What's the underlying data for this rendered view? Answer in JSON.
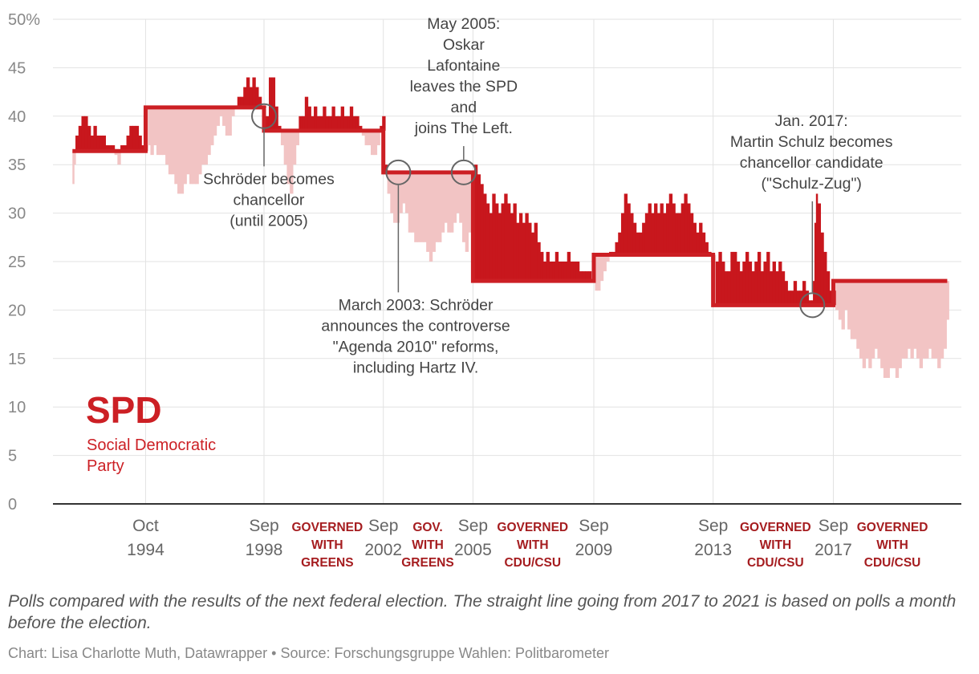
{
  "chart_data": {
    "type": "area",
    "title": "SPD",
    "subtitle": "Social Democratic Party",
    "party_name": "SPD",
    "party_subtitle_lines": [
      "Social Democratic",
      "Party"
    ],
    "ylabel": "",
    "ylim": [
      0,
      50
    ],
    "yticks": [
      {
        "value": 0,
        "label": "0"
      },
      {
        "value": 5,
        "label": "5"
      },
      {
        "value": 10,
        "label": "10"
      },
      {
        "value": 15,
        "label": "15"
      },
      {
        "value": 20,
        "label": "20"
      },
      {
        "value": 25,
        "label": "25"
      },
      {
        "value": 30,
        "label": "30"
      },
      {
        "value": 35,
        "label": "35"
      },
      {
        "value": 40,
        "label": "40"
      },
      {
        "value": 45,
        "label": "45"
      },
      {
        "value": 50,
        "label": "50%"
      }
    ],
    "xlim": [
      1991.7,
      2022.0
    ],
    "elections": [
      {
        "date": 1994.79,
        "label_lines": [
          "Oct",
          "1994"
        ]
      },
      {
        "date": 1998.74,
        "label_lines": [
          "Sep",
          "1998"
        ]
      },
      {
        "date": 2002.72,
        "label_lines": [
          "Sep",
          "2002"
        ]
      },
      {
        "date": 2005.71,
        "label_lines": [
          "Sep",
          "2005"
        ]
      },
      {
        "date": 2009.74,
        "label_lines": [
          "Sep",
          "2009"
        ]
      },
      {
        "date": 2013.72,
        "label_lines": [
          "Sep",
          "2013"
        ]
      },
      {
        "date": 2017.73,
        "label_lines": [
          "Sep",
          "2017"
        ]
      }
    ],
    "election_result_line": [
      {
        "from": 1992.35,
        "to": 1994.79,
        "value": 36.4
      },
      {
        "from": 1994.79,
        "to": 1998.74,
        "value": 40.9
      },
      {
        "from": 1998.74,
        "to": 2002.72,
        "value": 38.5
      },
      {
        "from": 2002.72,
        "to": 2005.71,
        "value": 34.2
      },
      {
        "from": 2005.71,
        "to": 2009.74,
        "value": 23.0
      },
      {
        "from": 2009.74,
        "to": 2013.72,
        "value": 25.7
      },
      {
        "from": 2013.72,
        "to": 2017.73,
        "value": 20.5
      },
      {
        "from": 2017.73,
        "to": 2021.53,
        "value": 23.0
      }
    ],
    "polls": [
      [
        1992.35,
        33
      ],
      [
        1992.4,
        35
      ],
      [
        1992.45,
        38
      ],
      [
        1992.55,
        39
      ],
      [
        1992.65,
        40
      ],
      [
        1992.75,
        40
      ],
      [
        1992.85,
        39
      ],
      [
        1992.95,
        38
      ],
      [
        1993.05,
        39
      ],
      [
        1993.15,
        38
      ],
      [
        1993.25,
        38
      ],
      [
        1993.35,
        38
      ],
      [
        1993.45,
        37
      ],
      [
        1993.55,
        37
      ],
      [
        1993.65,
        37
      ],
      [
        1993.75,
        36
      ],
      [
        1993.85,
        35
      ],
      [
        1993.95,
        37
      ],
      [
        1994.05,
        37
      ],
      [
        1994.15,
        38
      ],
      [
        1994.25,
        39
      ],
      [
        1994.35,
        39
      ],
      [
        1994.45,
        39
      ],
      [
        1994.55,
        38
      ],
      [
        1994.65,
        37
      ],
      [
        1994.75,
        37
      ],
      [
        1994.85,
        37
      ],
      [
        1994.95,
        36
      ],
      [
        1995.05,
        37
      ],
      [
        1995.15,
        36
      ],
      [
        1995.25,
        36
      ],
      [
        1995.35,
        36
      ],
      [
        1995.45,
        35
      ],
      [
        1995.55,
        34
      ],
      [
        1995.65,
        34
      ],
      [
        1995.75,
        33
      ],
      [
        1995.85,
        32
      ],
      [
        1995.95,
        32
      ],
      [
        1996.05,
        33
      ],
      [
        1996.15,
        34
      ],
      [
        1996.25,
        33
      ],
      [
        1996.35,
        33
      ],
      [
        1996.45,
        33
      ],
      [
        1996.55,
        34
      ],
      [
        1996.65,
        35
      ],
      [
        1996.75,
        35
      ],
      [
        1996.85,
        36
      ],
      [
        1996.95,
        37
      ],
      [
        1997.05,
        38
      ],
      [
        1997.15,
        39
      ],
      [
        1997.25,
        40
      ],
      [
        1997.35,
        39
      ],
      [
        1997.45,
        38
      ],
      [
        1997.55,
        38
      ],
      [
        1997.65,
        40
      ],
      [
        1997.75,
        41
      ],
      [
        1997.85,
        42
      ],
      [
        1997.95,
        42
      ],
      [
        1998.05,
        43
      ],
      [
        1998.15,
        44
      ],
      [
        1998.25,
        43
      ],
      [
        1998.35,
        44
      ],
      [
        1998.45,
        43
      ],
      [
        1998.55,
        42
      ],
      [
        1998.65,
        41
      ],
      [
        1998.8,
        40
      ],
      [
        1998.9,
        44
      ],
      [
        1999.0,
        44
      ],
      [
        1999.1,
        41
      ],
      [
        1999.2,
        39
      ],
      [
        1999.3,
        37
      ],
      [
        1999.4,
        35
      ],
      [
        1999.5,
        33
      ],
      [
        1999.6,
        32
      ],
      [
        1999.7,
        35
      ],
      [
        1999.8,
        37
      ],
      [
        1999.9,
        40
      ],
      [
        2000.0,
        40
      ],
      [
        2000.1,
        42
      ],
      [
        2000.2,
        41
      ],
      [
        2000.3,
        40
      ],
      [
        2000.4,
        41
      ],
      [
        2000.5,
        40
      ],
      [
        2000.6,
        40
      ],
      [
        2000.7,
        41
      ],
      [
        2000.8,
        40
      ],
      [
        2000.9,
        40
      ],
      [
        2001.0,
        41
      ],
      [
        2001.1,
        40
      ],
      [
        2001.2,
        40
      ],
      [
        2001.3,
        41
      ],
      [
        2001.4,
        40
      ],
      [
        2001.5,
        40
      ],
      [
        2001.6,
        41
      ],
      [
        2001.7,
        40
      ],
      [
        2001.8,
        40
      ],
      [
        2001.9,
        39
      ],
      [
        2002.0,
        38
      ],
      [
        2002.1,
        37
      ],
      [
        2002.2,
        37
      ],
      [
        2002.3,
        36
      ],
      [
        2002.4,
        36
      ],
      [
        2002.5,
        37
      ],
      [
        2002.6,
        39
      ],
      [
        2002.68,
        40
      ],
      [
        2002.78,
        35
      ],
      [
        2002.85,
        32
      ],
      [
        2002.95,
        30
      ],
      [
        2003.05,
        29
      ],
      [
        2003.15,
        29
      ],
      [
        2003.25,
        30
      ],
      [
        2003.35,
        31
      ],
      [
        2003.45,
        30
      ],
      [
        2003.55,
        28
      ],
      [
        2003.65,
        28
      ],
      [
        2003.75,
        27
      ],
      [
        2003.85,
        27
      ],
      [
        2003.95,
        27
      ],
      [
        2004.05,
        27
      ],
      [
        2004.15,
        26
      ],
      [
        2004.25,
        25
      ],
      [
        2004.35,
        26
      ],
      [
        2004.45,
        27
      ],
      [
        2004.55,
        27
      ],
      [
        2004.65,
        28
      ],
      [
        2004.75,
        29
      ],
      [
        2004.85,
        28
      ],
      [
        2004.95,
        28
      ],
      [
        2005.05,
        29
      ],
      [
        2005.15,
        30
      ],
      [
        2005.25,
        29
      ],
      [
        2005.35,
        27
      ],
      [
        2005.45,
        26
      ],
      [
        2005.55,
        28
      ],
      [
        2005.65,
        34
      ],
      [
        2005.75,
        35
      ],
      [
        2005.85,
        34
      ],
      [
        2005.95,
        33
      ],
      [
        2006.05,
        32
      ],
      [
        2006.15,
        31
      ],
      [
        2006.25,
        30
      ],
      [
        2006.35,
        32
      ],
      [
        2006.45,
        31
      ],
      [
        2006.55,
        30
      ],
      [
        2006.65,
        31
      ],
      [
        2006.75,
        32
      ],
      [
        2006.85,
        31
      ],
      [
        2006.95,
        30
      ],
      [
        2007.05,
        31
      ],
      [
        2007.15,
        29
      ],
      [
        2007.25,
        30
      ],
      [
        2007.35,
        29
      ],
      [
        2007.45,
        30
      ],
      [
        2007.55,
        29
      ],
      [
        2007.65,
        28
      ],
      [
        2007.75,
        29
      ],
      [
        2007.85,
        27
      ],
      [
        2007.95,
        26
      ],
      [
        2008.05,
        25
      ],
      [
        2008.15,
        26
      ],
      [
        2008.25,
        25
      ],
      [
        2008.35,
        25
      ],
      [
        2008.45,
        26
      ],
      [
        2008.55,
        25
      ],
      [
        2008.65,
        25
      ],
      [
        2008.75,
        25
      ],
      [
        2008.85,
        26
      ],
      [
        2008.95,
        25
      ],
      [
        2009.05,
        25
      ],
      [
        2009.15,
        25
      ],
      [
        2009.25,
        24
      ],
      [
        2009.35,
        24
      ],
      [
        2009.45,
        24
      ],
      [
        2009.55,
        24
      ],
      [
        2009.65,
        23
      ],
      [
        2009.78,
        22
      ],
      [
        2009.85,
        22
      ],
      [
        2009.95,
        23
      ],
      [
        2010.05,
        24
      ],
      [
        2010.15,
        25
      ],
      [
        2010.25,
        26
      ],
      [
        2010.35,
        26
      ],
      [
        2010.45,
        27
      ],
      [
        2010.55,
        28
      ],
      [
        2010.65,
        30
      ],
      [
        2010.75,
        32
      ],
      [
        2010.85,
        31
      ],
      [
        2010.95,
        30
      ],
      [
        2011.05,
        29
      ],
      [
        2011.15,
        28
      ],
      [
        2011.25,
        28
      ],
      [
        2011.35,
        29
      ],
      [
        2011.45,
        30
      ],
      [
        2011.55,
        31
      ],
      [
        2011.65,
        30
      ],
      [
        2011.75,
        31
      ],
      [
        2011.85,
        30
      ],
      [
        2011.95,
        31
      ],
      [
        2012.05,
        30
      ],
      [
        2012.15,
        31
      ],
      [
        2012.25,
        32
      ],
      [
        2012.35,
        31
      ],
      [
        2012.45,
        30
      ],
      [
        2012.55,
        30
      ],
      [
        2012.65,
        31
      ],
      [
        2012.75,
        32
      ],
      [
        2012.85,
        31
      ],
      [
        2012.95,
        30
      ],
      [
        2013.05,
        29
      ],
      [
        2013.15,
        28
      ],
      [
        2013.25,
        29
      ],
      [
        2013.35,
        28
      ],
      [
        2013.45,
        27
      ],
      [
        2013.55,
        26
      ],
      [
        2013.65,
        25
      ],
      [
        2013.8,
        25
      ],
      [
        2013.9,
        26
      ],
      [
        2014.0,
        25
      ],
      [
        2014.1,
        24
      ],
      [
        2014.2,
        24
      ],
      [
        2014.3,
        26
      ],
      [
        2014.4,
        26
      ],
      [
        2014.5,
        25
      ],
      [
        2014.6,
        24
      ],
      [
        2014.7,
        25
      ],
      [
        2014.8,
        26
      ],
      [
        2014.9,
        25
      ],
      [
        2015.0,
        24
      ],
      [
        2015.1,
        25
      ],
      [
        2015.2,
        26
      ],
      [
        2015.3,
        24
      ],
      [
        2015.4,
        25
      ],
      [
        2015.5,
        26
      ],
      [
        2015.6,
        24
      ],
      [
        2015.7,
        25
      ],
      [
        2015.8,
        24
      ],
      [
        2015.9,
        25
      ],
      [
        2016.0,
        24
      ],
      [
        2016.1,
        23
      ],
      [
        2016.2,
        22
      ],
      [
        2016.3,
        22
      ],
      [
        2016.4,
        23
      ],
      [
        2016.5,
        22
      ],
      [
        2016.6,
        22
      ],
      [
        2016.7,
        23
      ],
      [
        2016.8,
        22
      ],
      [
        2016.9,
        21
      ],
      [
        2017.0,
        21
      ],
      [
        2017.05,
        23
      ],
      [
        2017.1,
        29
      ],
      [
        2017.15,
        32
      ],
      [
        2017.2,
        31
      ],
      [
        2017.3,
        28
      ],
      [
        2017.4,
        26
      ],
      [
        2017.5,
        24
      ],
      [
        2017.6,
        22
      ],
      [
        2017.8,
        20
      ],
      [
        2017.9,
        19
      ],
      [
        2018.0,
        18
      ],
      [
        2018.1,
        20
      ],
      [
        2018.2,
        18
      ],
      [
        2018.3,
        17
      ],
      [
        2018.4,
        17
      ],
      [
        2018.5,
        16
      ],
      [
        2018.6,
        15
      ],
      [
        2018.7,
        14
      ],
      [
        2018.8,
        15
      ],
      [
        2018.9,
        14
      ],
      [
        2019.0,
        15
      ],
      [
        2019.1,
        16
      ],
      [
        2019.2,
        15
      ],
      [
        2019.3,
        14
      ],
      [
        2019.4,
        13
      ],
      [
        2019.5,
        13
      ],
      [
        2019.6,
        14
      ],
      [
        2019.7,
        14
      ],
      [
        2019.8,
        13
      ],
      [
        2019.9,
        14
      ],
      [
        2020.0,
        15
      ],
      [
        2020.1,
        15
      ],
      [
        2020.2,
        16
      ],
      [
        2020.3,
        15
      ],
      [
        2020.4,
        16
      ],
      [
        2020.5,
        15
      ],
      [
        2020.6,
        14
      ],
      [
        2020.7,
        15
      ],
      [
        2020.8,
        15
      ],
      [
        2020.9,
        16
      ],
      [
        2021.0,
        15
      ],
      [
        2021.1,
        15
      ],
      [
        2021.2,
        14
      ],
      [
        2021.3,
        15
      ],
      [
        2021.4,
        16
      ],
      [
        2021.5,
        19
      ]
    ],
    "coalition_periods": [
      {
        "lines": [
          "GOVERNED",
          "WITH",
          "GREENS"
        ],
        "center": 2000.85
      },
      {
        "lines": [
          "GOV.",
          "WITH",
          "GREENS"
        ],
        "center": 2004.2
      },
      {
        "lines": [
          "GOVERNED",
          "WITH",
          "CDU/CSU"
        ],
        "center": 2007.7
      },
      {
        "lines": [
          "GOVERNED",
          "WITH",
          "CDU/CSU"
        ],
        "center": 2015.8
      },
      {
        "lines": [
          "GOVERNED",
          "WITH",
          "CDU/CSU"
        ],
        "center": 2019.7
      }
    ],
    "annotations": [
      {
        "lines": [
          "Schröder becomes",
          "chancellor",
          "(until 2005)"
        ],
        "date": 1998.74,
        "value": 40.0,
        "text_anchor_date": 1998.9,
        "text_top_value": 33
      },
      {
        "lines": [
          "March 2003: Schröder",
          "announces the controverse",
          "\"Agenda 2010\" reforms,",
          "including Hartz IV."
        ],
        "date": 2003.22,
        "value": 34.2,
        "text_anchor_date": 2003.8,
        "text_top_value": 20
      },
      {
        "lines": [
          "May 2005:",
          "Oskar",
          "Lafontaine",
          "leaves the SPD",
          "and",
          "joins The Left."
        ],
        "date": 2005.4,
        "value": 34.2,
        "text_anchor_date": 2005.4,
        "text_top_value": 49
      },
      {
        "lines": [
          "Jan. 2017:",
          "Martin Schulz becomes",
          "chancellor candidate",
          "(\"Schulz-Zug\")"
        ],
        "date": 2017.03,
        "value": 20.5,
        "text_anchor_date": 2017.0,
        "text_top_value": 39
      }
    ]
  },
  "footnote": "Polls compared with the results of the next federal election. The straight line going from 2017 to 2021 is based on polls a month before the election.",
  "credit": {
    "chart_by": "Chart: Lisa Charlotte Muth, Datawrapper",
    "separator": "•",
    "source": "Source: Forschungsgruppe Wahlen: Politbarometer"
  },
  "colors": {
    "above": "#c8171d",
    "below": "#f2c4c4",
    "line": "#cc1f24",
    "grid": "#e2e2e2",
    "axis": "#333333",
    "marker": "#666666"
  }
}
